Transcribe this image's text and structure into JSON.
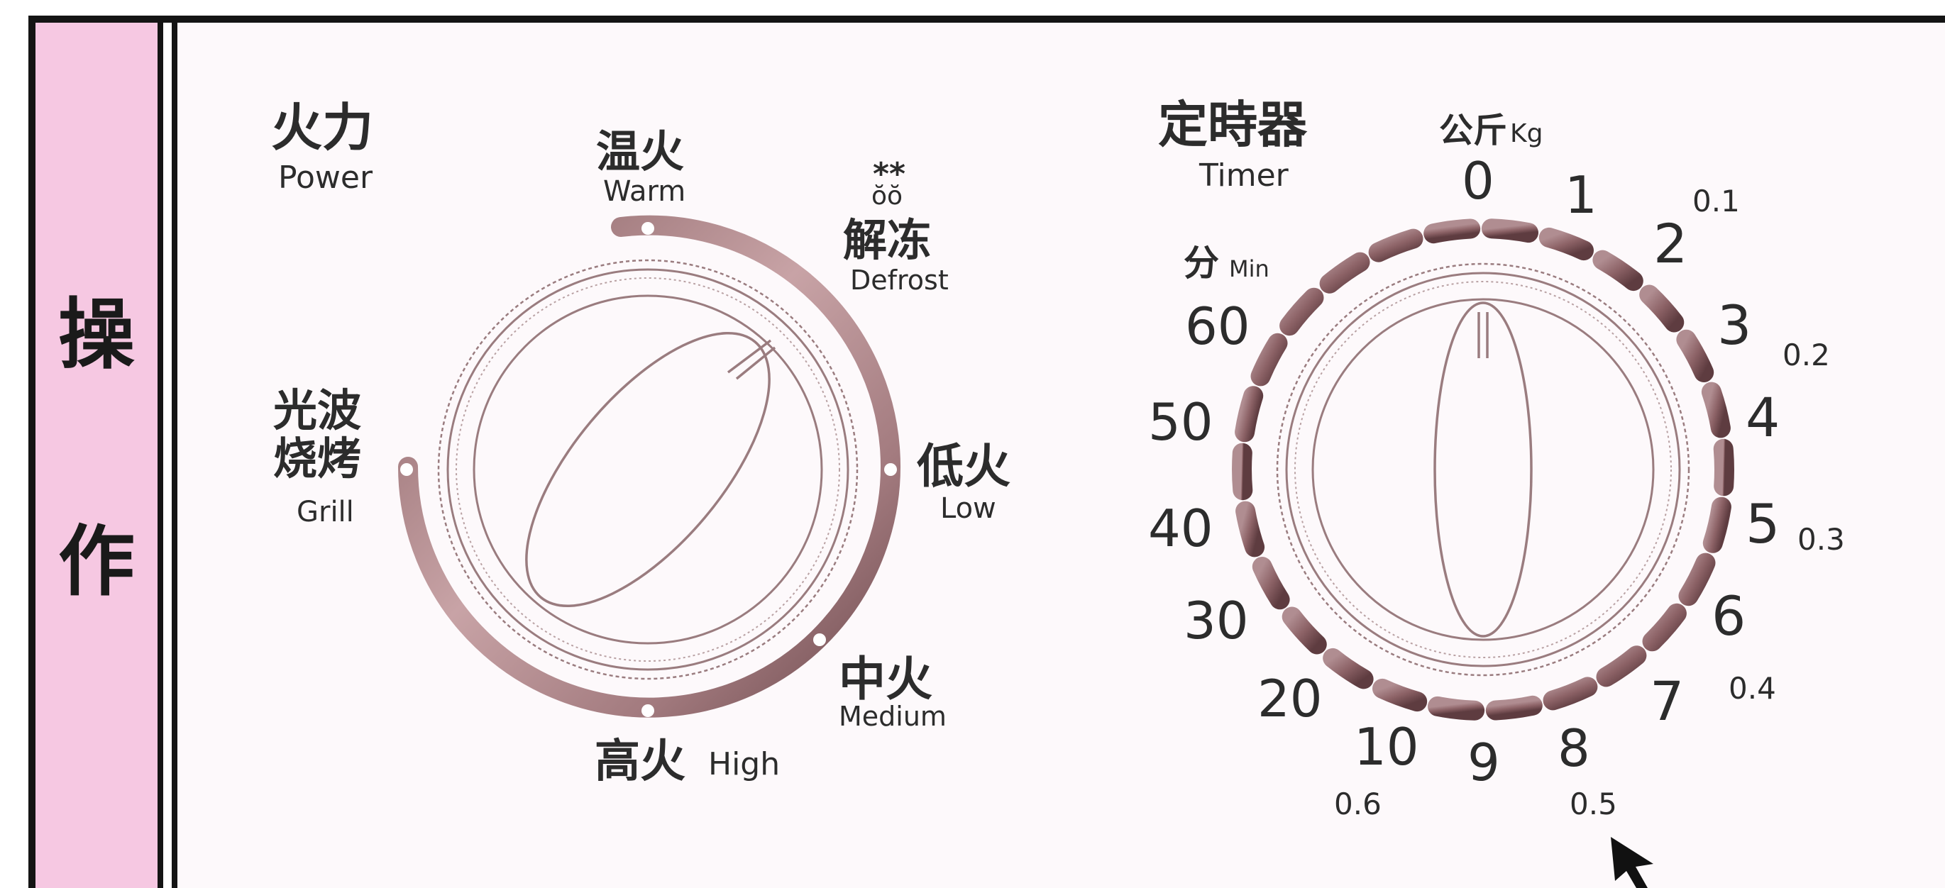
{
  "sidebar": {
    "label_top": "操",
    "label_bottom": "作"
  },
  "power_dial": {
    "title_zh": "火力",
    "title_en": "Power",
    "settings": [
      {
        "zh": "温火",
        "en": "Warm"
      },
      {
        "zh": "解冻",
        "en": "Defrost",
        "icon": "ice-drop-icon",
        "icon_text": "**"
      },
      {
        "zh": "低火",
        "en": "Low"
      },
      {
        "zh": "中火",
        "en": "Medium"
      },
      {
        "zh": "高火",
        "en": "High"
      },
      {
        "zh": "光波",
        "zh2": "烧烤",
        "en": "Grill"
      }
    ]
  },
  "timer_dial": {
    "title_zh": "定時器",
    "title_en": "Timer",
    "weight_unit_zh": "公斤",
    "weight_unit_en": "Kg",
    "minute_unit_zh": "分",
    "minute_unit_en": "Min",
    "numbers": [
      "0",
      "1",
      "2",
      "3",
      "4",
      "5",
      "6",
      "7",
      "8",
      "9",
      "10",
      "20",
      "30",
      "40",
      "50",
      "60"
    ],
    "weights": [
      "0.1",
      "0.2",
      "0.3",
      "0.4",
      "0.5",
      "0.6"
    ]
  },
  "colors": {
    "sidebar": "#f6c8e2",
    "frame": "#141414",
    "arc": "#9c7276",
    "panel": "#fdf9fb"
  }
}
